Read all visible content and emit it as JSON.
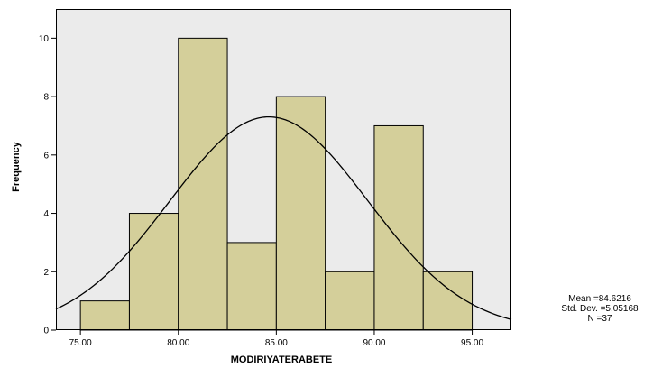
{
  "chart_data": {
    "type": "bar",
    "subtype": "histogram-with-normal-curve",
    "title": "",
    "xlabel": "MODIRIYATERABETE",
    "ylabel": "Frequency",
    "bins": [
      {
        "start": 75.0,
        "end": 77.5,
        "value": 1
      },
      {
        "start": 77.5,
        "end": 80.0,
        "value": 4
      },
      {
        "start": 80.0,
        "end": 82.5,
        "value": 10
      },
      {
        "start": 82.5,
        "end": 85.0,
        "value": 3
      },
      {
        "start": 85.0,
        "end": 87.5,
        "value": 8
      },
      {
        "start": 87.5,
        "end": 90.0,
        "value": 2
      },
      {
        "start": 90.0,
        "end": 92.5,
        "value": 7
      },
      {
        "start": 92.5,
        "end": 95.0,
        "value": 2
      }
    ],
    "xlim": [
      73.75,
      97.0
    ],
    "ylim": [
      0,
      11
    ],
    "x_ticks": [
      "75.00",
      "80.00",
      "85.00",
      "90.00",
      "95.00"
    ],
    "y_ticks": [
      "0",
      "2",
      "4",
      "6",
      "8",
      "10"
    ],
    "normal_curve": {
      "mean": 84.6216,
      "std": 5.05168,
      "n": 37,
      "bin_width": 2.5
    },
    "stats": {
      "mean": "Mean =84.6216",
      "std_dev": "Std. Dev. =5.05168",
      "n": "N =37"
    },
    "grid": false,
    "legend": "none",
    "colors": {
      "plot_background": "#ebebeb",
      "bar_fill": "#d4cf9a",
      "bar_stroke": "#000000",
      "curve": "#000000"
    }
  }
}
